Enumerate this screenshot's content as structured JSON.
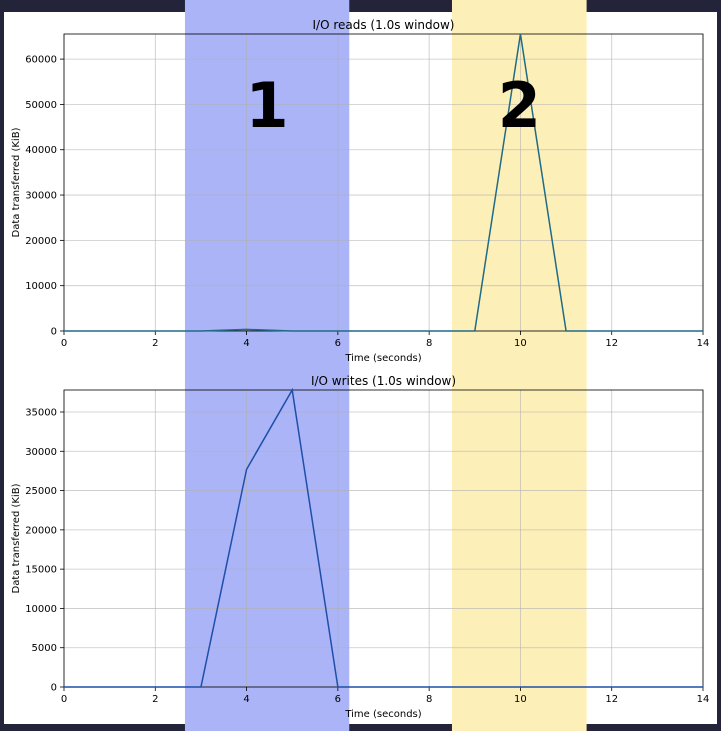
{
  "colors": {
    "background": "#23233a",
    "figure": "#ffffff",
    "region1": "#aab4f7",
    "region2": "#fdefb8",
    "read_line": "#1f6b88",
    "write_line": "#1f4faa",
    "grid": "#b0b0b0"
  },
  "regions": [
    {
      "label": "1",
      "x_start": 2.65,
      "x_end": 6.25,
      "color": "#aab4f7"
    },
    {
      "label": "2",
      "x_start": 8.5,
      "x_end": 11.45,
      "color": "#fdefb8"
    }
  ],
  "chart_data": [
    {
      "type": "line",
      "title": "I/O reads (1.0s window)",
      "xlabel": "Time (seconds)",
      "ylabel": "Data transferred (KiB)",
      "xlim": [
        0,
        14
      ],
      "ylim": [
        0,
        65536
      ],
      "xticks": [
        0,
        2,
        4,
        6,
        8,
        10,
        12,
        14
      ],
      "yticks": [
        0,
        10000,
        20000,
        30000,
        40000,
        50000,
        60000
      ],
      "grid": true,
      "x": [
        0,
        1,
        2,
        3,
        4,
        5,
        6,
        7,
        8,
        9,
        10,
        11,
        12,
        13,
        14
      ],
      "series": [
        {
          "values": [
            0,
            0,
            0,
            0,
            350,
            0,
            0,
            0,
            0,
            0,
            65536,
            0,
            0,
            0,
            0
          ],
          "color": "#1f6b88"
        }
      ]
    },
    {
      "type": "line",
      "title": "I/O writes (1.0s window)",
      "xlabel": "Time (seconds)",
      "ylabel": "Data transferred (KiB)",
      "xlim": [
        0,
        14
      ],
      "ylim": [
        0,
        37800
      ],
      "xticks": [
        0,
        2,
        4,
        6,
        8,
        10,
        12,
        14
      ],
      "yticks": [
        0,
        5000,
        10000,
        15000,
        20000,
        25000,
        30000,
        35000
      ],
      "grid": true,
      "x": [
        0,
        1,
        2,
        3,
        4,
        5,
        6,
        7,
        8,
        9,
        10,
        11,
        12,
        13,
        14
      ],
      "series": [
        {
          "values": [
            0,
            0,
            0,
            0,
            27700,
            37800,
            0,
            0,
            0,
            0,
            0,
            0,
            0,
            0,
            0
          ],
          "color": "#1f4faa"
        }
      ]
    }
  ]
}
